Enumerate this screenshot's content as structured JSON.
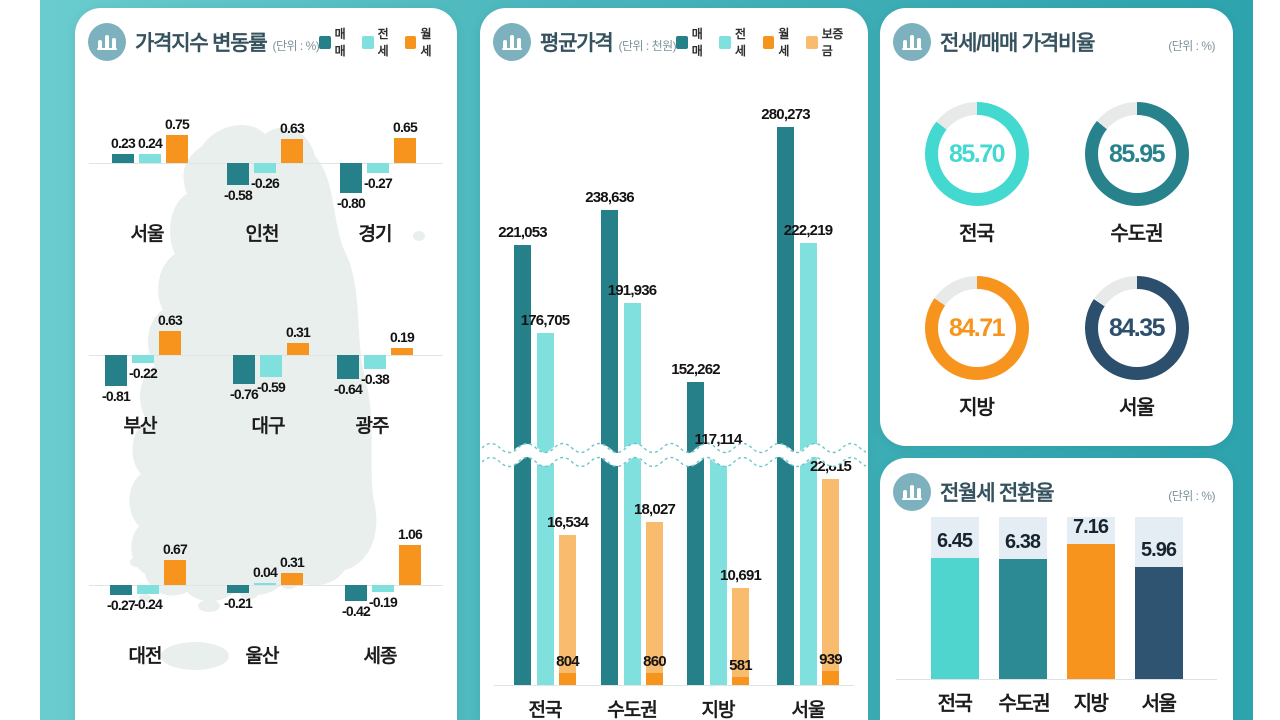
{
  "chart_data": [
    {
      "type": "bar",
      "title": "가격지수 변동률",
      "unit": "(단위 : %)",
      "legend": [
        "매매",
        "전세",
        "월세"
      ],
      "series_colors": {
        "매매": "#26808a",
        "전세": "#7fe0dd",
        "월세": "#f7941e"
      },
      "rows": [
        [
          {
            "region": "서울",
            "values": [
              "0.23",
              "0.24",
              "0.75"
            ]
          },
          {
            "region": "인천",
            "values": [
              "-0.58",
              "-0.26",
              "0.63"
            ]
          },
          {
            "region": "경기",
            "values": [
              "-0.80",
              "-0.27",
              "0.65"
            ]
          }
        ],
        [
          {
            "region": "부산",
            "values": [
              "-0.81",
              "-0.22",
              "0.63"
            ]
          },
          {
            "region": "대구",
            "values": [
              "-0.76",
              "-0.59",
              "0.31"
            ]
          },
          {
            "region": "광주",
            "values": [
              "-0.64",
              "-0.38",
              "0.19"
            ]
          }
        ],
        [
          {
            "region": "대전",
            "values": [
              "-0.27",
              "-0.24",
              "0.67"
            ]
          },
          {
            "region": "울산",
            "values": [
              "-0.21",
              "0.04",
              "0.31"
            ]
          },
          {
            "region": "세종",
            "values": [
              "-0.42",
              "-0.19",
              "1.06"
            ]
          }
        ]
      ]
    },
    {
      "type": "bar",
      "title": "평균가격",
      "unit": "(단위 : 천원)",
      "legend": [
        "매매",
        "전세",
        "월세",
        "보증금"
      ],
      "series_colors": {
        "매매": "#26808a",
        "전세": "#7fe0dd",
        "월세": "#f7941e",
        "보증금": "#f9bb6d"
      },
      "categories": [
        "전국",
        "수도권",
        "지방",
        "서울"
      ],
      "series": {
        "매매": [
          "221,053",
          "238,636",
          "152,262",
          "280,273"
        ],
        "전세": [
          "176,705",
          "191,936",
          "117,114",
          "222,219"
        ],
        "월세": [
          "804",
          "860",
          "581",
          "939"
        ],
        "보증금": [
          "16,534",
          "18,027",
          "10,691",
          "22,815"
        ]
      },
      "axis_break": true
    },
    {
      "type": "donut",
      "title": "전세/매매 가격비율",
      "unit": "(단위 : %)",
      "max": 100,
      "items": [
        {
          "label": "전국",
          "value": "85.70",
          "color": "#43d9d0"
        },
        {
          "label": "수도권",
          "value": "85.95",
          "color": "#27828c"
        },
        {
          "label": "지방",
          "value": "84.71",
          "color": "#f7941e"
        },
        {
          "label": "서울",
          "value": "84.35",
          "color": "#2c4f6e"
        }
      ],
      "track_color": "#e8eaea"
    },
    {
      "type": "bar",
      "title": "전월세 전환율",
      "unit": "(단위 : %)",
      "items": [
        {
          "label": "전국",
          "value": "6.45",
          "color": "#4fd5cd"
        },
        {
          "label": "수도권",
          "value": "6.38",
          "color": "#2b8a94"
        },
        {
          "label": "지방",
          "value": "7.16",
          "color": "#f7941e"
        },
        {
          "label": "서울",
          "value": "5.96",
          "color": "#2e5472"
        }
      ],
      "track_color": "#e3edf3"
    }
  ],
  "colors": {
    "background_teal": "#2da3ae",
    "background_teal_light": "#6accce",
    "panel": "#ffffff",
    "title_text": "#36525e",
    "map_fill": "#e9efec"
  }
}
